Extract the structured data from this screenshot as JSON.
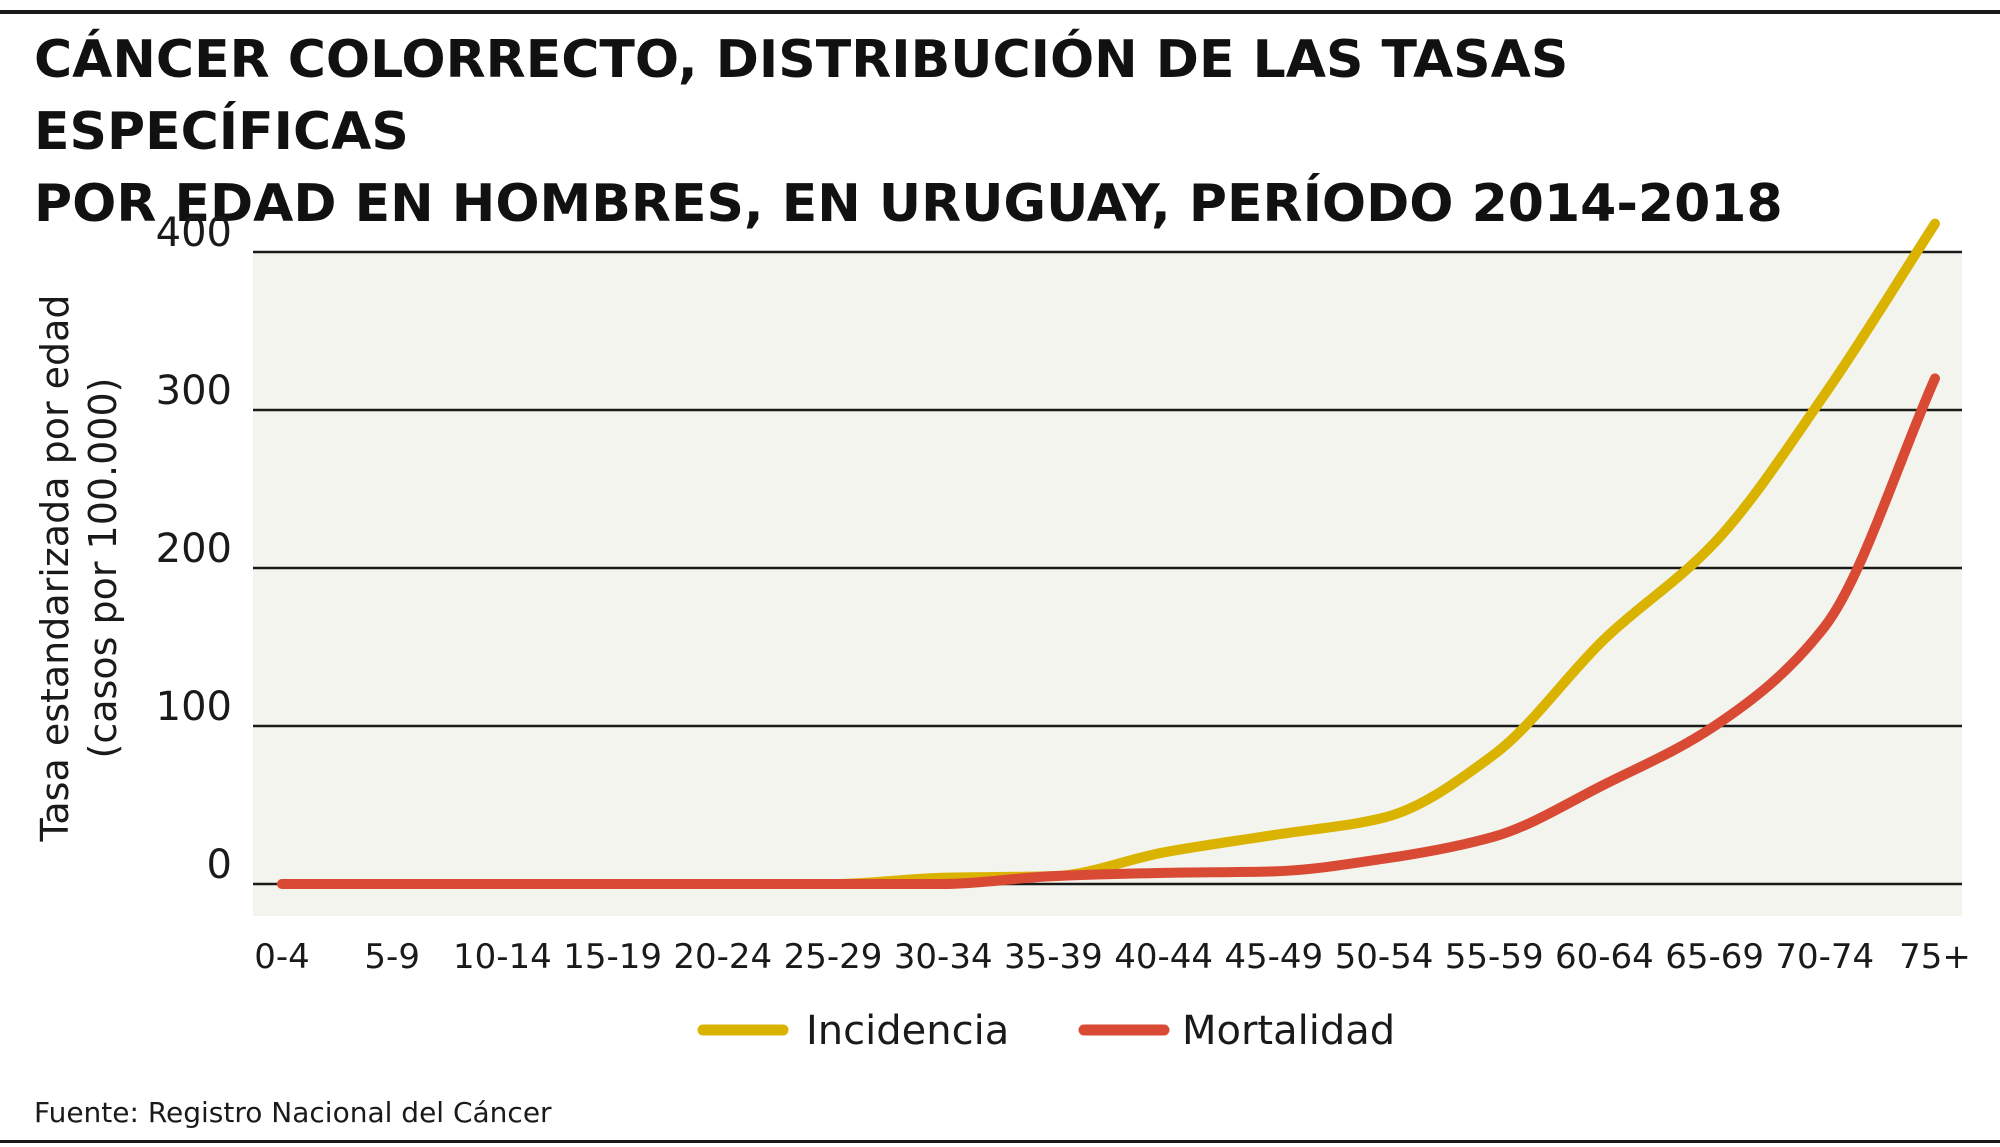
{
  "title_lines": [
    "CÁNCER COLORRECTO, DISTRIBUCIÓN DE LAS TASAS ESPECÍFICAS",
    "POR EDAD EN HOMBRES, EN URUGUAY, PERÍODO 2014-2018"
  ],
  "source": "Fuente: Registro Nacional del Cáncer",
  "colors": {
    "plot_background": "#f4f4ee",
    "grid": "#1a1a1a",
    "incidencia": "#d9b300",
    "mortalidad": "#d94a35"
  },
  "chart_data": {
    "type": "line",
    "title": "CÁNCER COLORRECTO, DISTRIBUCIÓN DE LAS TASAS ESPECÍFICAS POR EDAD EN HOMBRES, EN URUGUAY, PERÍODO 2014-2018",
    "ylabel_lines": [
      "Tasa estandarizada por edad",
      "(casos por 100.000)"
    ],
    "xlabel": "",
    "categories": [
      "0-4",
      "5-9",
      "10-14",
      "15-19",
      "20-24",
      "25-29",
      "30-34",
      "35-39",
      "40-44",
      "45-49",
      "50-54",
      "55-59",
      "60-64",
      "65-69",
      "70-74",
      "75+"
    ],
    "ylim": [
      0,
      420
    ],
    "yticks": [
      0,
      100,
      200,
      300,
      400
    ],
    "grid": true,
    "legend_position": "bottom",
    "series": [
      {
        "name": "Incidencia",
        "color": "#d9b300",
        "values": [
          0,
          0,
          0,
          0,
          0,
          0,
          4,
          5,
          20,
          31,
          42,
          82,
          155,
          216,
          310,
          418
        ]
      },
      {
        "name": "Mortalidad",
        "color": "#d94a35",
        "values": [
          0,
          0,
          0,
          0,
          0,
          0,
          0,
          5,
          7,
          8,
          16,
          30,
          63,
          100,
          163,
          320
        ]
      }
    ]
  }
}
